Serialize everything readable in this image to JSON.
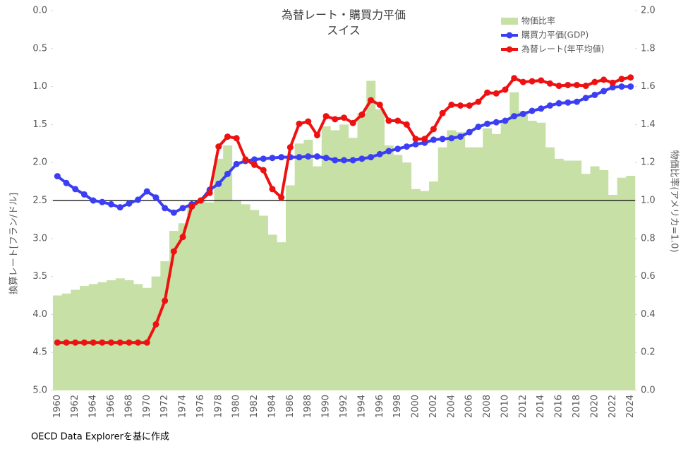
{
  "chart_data": {
    "type": "bar-line",
    "title": "為替レート・購買力平価",
    "subtitle": "スイス",
    "y_label": "換算レート[フラン/ドル]",
    "y2_label": "物価比率(アメリカ=1.0)",
    "source": "OECD Data Explorerを基に作成",
    "categories": [
      "1960",
      null,
      "1962",
      null,
      "1964",
      null,
      "1966",
      null,
      "1968",
      null,
      "1970",
      null,
      "1972",
      null,
      "1974",
      null,
      "1976",
      null,
      "1978",
      null,
      "1980",
      null,
      "1982",
      null,
      "1984",
      null,
      "1986",
      null,
      "1988",
      null,
      "1990",
      null,
      "1992",
      null,
      "1994",
      null,
      "1996",
      null,
      "1998",
      null,
      "2000",
      null,
      "2002",
      null,
      "2004",
      null,
      "2006",
      null,
      "2008",
      null,
      "2010",
      null,
      "2012",
      null,
      "2014",
      null,
      "2016",
      null,
      "2018",
      null,
      "2020",
      null,
      "2022",
      null,
      "2024"
    ],
    "ylim": [
      0,
      5
    ],
    "y_inverted": true,
    "yticks": [
      {
        "value": 0,
        "label": "0.0"
      },
      {
        "value": 0.5,
        "label": "0.5"
      },
      {
        "value": 1,
        "label": "1.0"
      },
      {
        "value": 1.5,
        "label": "1.5"
      },
      {
        "value": 2,
        "label": "2.0"
      },
      {
        "value": 2.5,
        "label": "2.5"
      },
      {
        "value": 3,
        "label": "3.0"
      },
      {
        "value": 3.5,
        "label": "3.5"
      },
      {
        "value": 4,
        "label": "4.0"
      },
      {
        "value": 4.5,
        "label": "4.5"
      },
      {
        "value": 5,
        "label": "5.0"
      }
    ],
    "y2lim": [
      0,
      2
    ],
    "y2ticks": [
      {
        "value": 0,
        "label": "0.0"
      },
      {
        "value": 0.2,
        "label": "0.2"
      },
      {
        "value": 0.4,
        "label": "0.4"
      },
      {
        "value": 0.6,
        "label": "0.6"
      },
      {
        "value": 0.8,
        "label": "0.8"
      },
      {
        "value": 1,
        "label": "1.0"
      },
      {
        "value": 1.2,
        "label": "1.2"
      },
      {
        "value": 1.4,
        "label": "1.4"
      },
      {
        "value": 1.6,
        "label": "1.6"
      },
      {
        "value": 1.8,
        "label": "1.8"
      },
      {
        "value": 2,
        "label": "2.0"
      }
    ],
    "reference_line": {
      "axis": "y2",
      "value": 1,
      "color": "#000000"
    },
    "legend": "top-right",
    "series": [
      {
        "name": "物価比率",
        "type": "bar",
        "axis": "y2",
        "color": "#c6e0a6",
        "values": [
          0.5,
          0.51,
          0.53,
          0.55,
          0.56,
          0.57,
          0.58,
          0.59,
          0.58,
          0.56,
          0.54,
          0.6,
          0.68,
          0.84,
          0.88,
          0.97,
          1.0,
          0.99,
          1.22,
          1.29,
          1.0,
          0.98,
          0.95,
          0.92,
          0.82,
          0.78,
          1.08,
          1.3,
          1.32,
          1.18,
          1.39,
          1.37,
          1.4,
          1.33,
          1.46,
          1.63,
          1.48,
          1.29,
          1.24,
          1.2,
          1.06,
          1.05,
          1.1,
          1.28,
          1.37,
          1.36,
          1.28,
          1.28,
          1.38,
          1.35,
          1.42,
          1.57,
          1.47,
          1.42,
          1.41,
          1.28,
          1.22,
          1.21,
          1.21,
          1.14,
          1.18,
          1.16,
          1.03,
          1.12,
          1.13
        ]
      },
      {
        "name": "購買力平価(GDP)",
        "type": "line",
        "axis": "y",
        "color": "#3b3ef2",
        "values": [
          2.18,
          2.27,
          2.35,
          2.42,
          2.5,
          2.52,
          2.55,
          2.59,
          2.54,
          2.49,
          2.38,
          2.46,
          2.6,
          2.66,
          2.6,
          2.55,
          2.5,
          2.36,
          2.28,
          2.15,
          2.02,
          1.98,
          1.96,
          1.95,
          1.94,
          1.93,
          1.93,
          1.93,
          1.92,
          1.92,
          1.94,
          1.97,
          1.97,
          1.97,
          1.95,
          1.93,
          1.89,
          1.85,
          1.82,
          1.79,
          1.76,
          1.74,
          1.7,
          1.69,
          1.68,
          1.66,
          1.6,
          1.53,
          1.49,
          1.47,
          1.45,
          1.39,
          1.36,
          1.32,
          1.29,
          1.25,
          1.22,
          1.21,
          1.2,
          1.15,
          1.11,
          1.06,
          1.01,
          1.0,
          1.0
        ]
      },
      {
        "name": "為替レート(年平均値)",
        "type": "line",
        "axis": "y",
        "color": "#ee1111",
        "values": [
          4.37,
          4.37,
          4.37,
          4.37,
          4.37,
          4.37,
          4.37,
          4.37,
          4.37,
          4.37,
          4.37,
          4.13,
          3.82,
          3.17,
          2.98,
          2.58,
          2.5,
          2.4,
          1.79,
          1.66,
          1.68,
          1.96,
          2.03,
          2.1,
          2.35,
          2.46,
          1.8,
          1.49,
          1.46,
          1.64,
          1.39,
          1.43,
          1.41,
          1.48,
          1.37,
          1.18,
          1.24,
          1.45,
          1.45,
          1.5,
          1.69,
          1.69,
          1.56,
          1.35,
          1.24,
          1.25,
          1.25,
          1.2,
          1.08,
          1.09,
          1.04,
          0.89,
          0.94,
          0.93,
          0.92,
          0.96,
          0.99,
          0.98,
          0.98,
          0.99,
          0.94,
          0.91,
          0.95,
          0.9,
          0.88
        ]
      }
    ]
  }
}
